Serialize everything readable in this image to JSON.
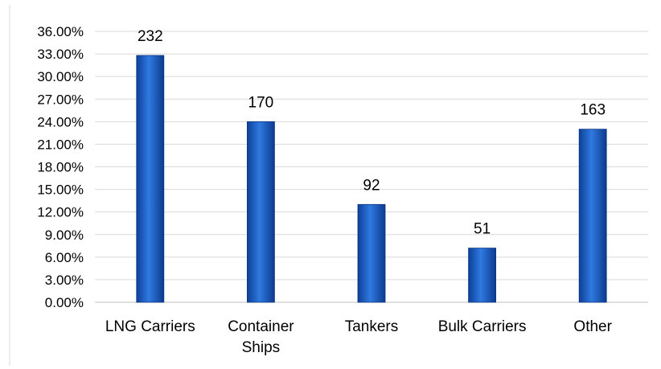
{
  "chart_data": {
    "type": "bar",
    "categories": [
      "LNG Carriers",
      "Container Ships",
      "Tankers",
      "Bulk Carriers",
      "Other"
    ],
    "category_lines": [
      [
        "LNG Carriers"
      ],
      [
        "Container",
        "Ships"
      ],
      [
        "Tankers"
      ],
      [
        "Bulk Carriers"
      ],
      [
        "Other"
      ]
    ],
    "values": [
      32.8,
      24.0,
      13.0,
      7.2,
      23.0
    ],
    "data_labels": [
      "232",
      "170",
      "92",
      "51",
      "163"
    ],
    "yticks": [
      "0.00%",
      "3.00%",
      "6.00%",
      "9.00%",
      "12.00%",
      "15.00%",
      "18.00%",
      "21.00%",
      "24.00%",
      "27.00%",
      "30.00%",
      "33.00%",
      "36.00%"
    ],
    "ylim": [
      0,
      36
    ],
    "ystep": 3,
    "title": "",
    "xlabel": "",
    "ylabel": "",
    "grid": true,
    "legend": "none",
    "bar_color": "#1f5fc4"
  }
}
